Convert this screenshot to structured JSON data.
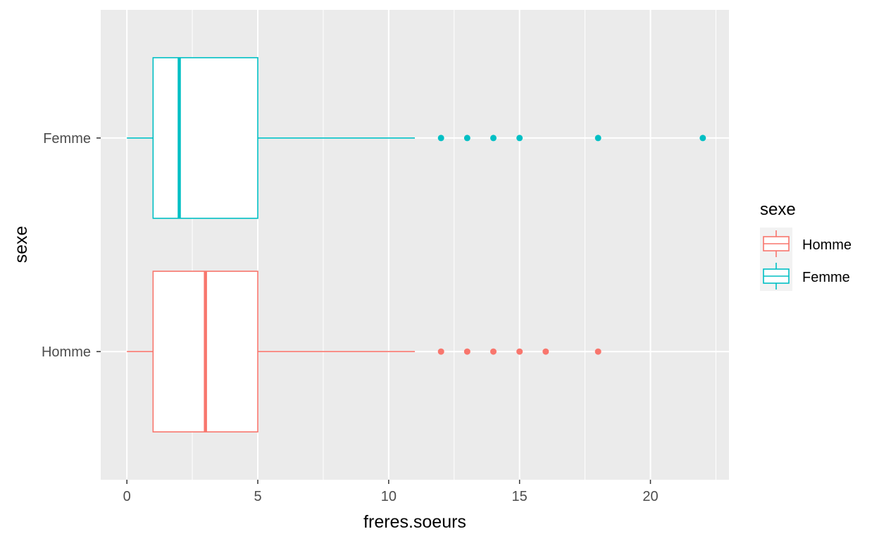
{
  "chart_data": {
    "type": "boxplot",
    "orientation": "horizontal",
    "xlabel": "freres.soeurs",
    "ylabel": "sexe",
    "xlim": [
      -1,
      23
    ],
    "x_ticks": [
      0,
      5,
      10,
      15,
      20
    ],
    "x_tick_labels": [
      "0",
      "5",
      "10",
      "15",
      "20"
    ],
    "grid": true,
    "categories": [
      "Homme",
      "Femme"
    ],
    "series": [
      {
        "name": "Homme",
        "color": "#F8766D",
        "whisker_low": 0,
        "q1": 1,
        "median": 3,
        "q3": 5,
        "whisker_high": 11,
        "outliers": [
          12,
          13,
          14,
          15,
          16,
          18
        ]
      },
      {
        "name": "Femme",
        "color": "#00BFC4",
        "whisker_low": 0,
        "q1": 1,
        "median": 2,
        "q3": 5,
        "whisker_high": 11,
        "outliers": [
          12,
          13,
          14,
          15,
          18,
          22
        ]
      }
    ],
    "legend": {
      "title": "sexe",
      "position": "right",
      "entries": [
        "Homme",
        "Femme"
      ]
    }
  }
}
